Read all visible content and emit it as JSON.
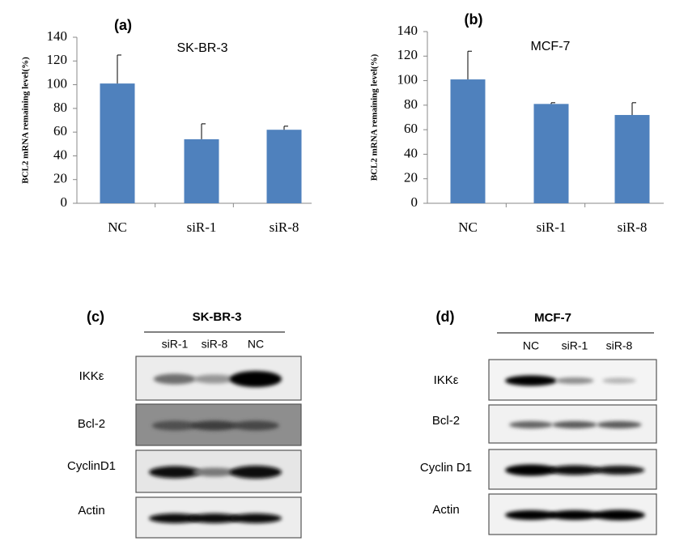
{
  "chart_data": [
    {
      "type": "bar",
      "panel": "(a)",
      "title": "SK-BR-3",
      "ylabel": "BCL2 mRNA remaining level(%)",
      "categories": [
        "NC",
        "siR-1",
        "siR-8"
      ],
      "values": [
        101,
        54,
        62
      ],
      "errors": [
        24,
        13,
        3
      ],
      "color": "#4f81bd",
      "ylim": [
        0,
        140
      ],
      "yticks": [
        0,
        20,
        40,
        60,
        80,
        100,
        120,
        140
      ]
    },
    {
      "type": "bar",
      "panel": "(b)",
      "title": "MCF-7",
      "ylabel": "BCL2 mRNA remaining level(%)",
      "categories": [
        "NC",
        "siR-1",
        "siR-8"
      ],
      "values": [
        101,
        81,
        72
      ],
      "errors": [
        23,
        1,
        10
      ],
      "color": "#4f81bd",
      "ylim": [
        0,
        140
      ],
      "yticks": [
        0,
        20,
        40,
        60,
        80,
        100,
        120,
        140
      ]
    }
  ],
  "blots": [
    {
      "panel": "(c)",
      "cell_line": "SK-BR-3",
      "lanes": [
        "siR-1",
        "siR-8",
        "NC"
      ],
      "rows": [
        "IKKε",
        "Bcl-2",
        "CyclinD1",
        "Actin"
      ]
    },
    {
      "panel": "(d)",
      "cell_line": "MCF-7",
      "lanes": [
        "NC",
        "siR-1",
        "siR-8"
      ],
      "rows": [
        "IKKε",
        "Bcl-2",
        "Cyclin D1",
        "Actin"
      ]
    }
  ]
}
